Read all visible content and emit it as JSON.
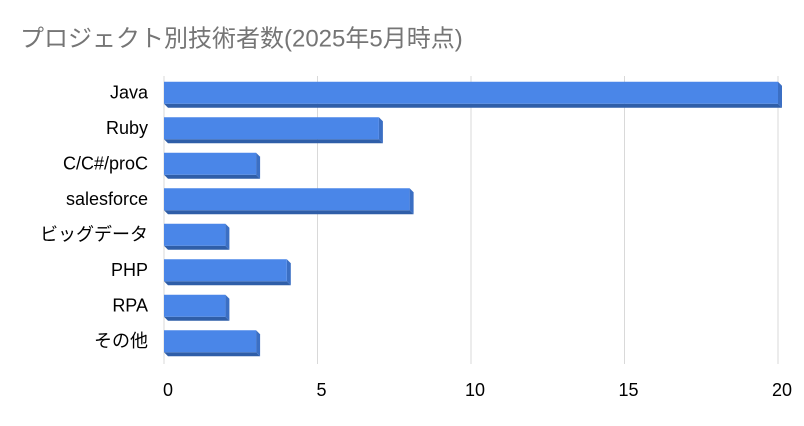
{
  "chart_data": {
    "type": "bar",
    "orientation": "horizontal",
    "title": "プロジェクト別技術者数(2025年5月時点)",
    "categories": [
      "Java",
      "Ruby",
      "C/C#/proC",
      "salesforce",
      "ビッグデータ",
      "PHP",
      "RPA",
      "その他"
    ],
    "values": [
      20,
      7,
      3,
      8,
      2,
      4,
      2,
      3
    ],
    "color": "#4a86e8",
    "xlim": [
      0,
      20
    ],
    "xticks": [
      0,
      5,
      10,
      15,
      20
    ],
    "grid": true
  }
}
